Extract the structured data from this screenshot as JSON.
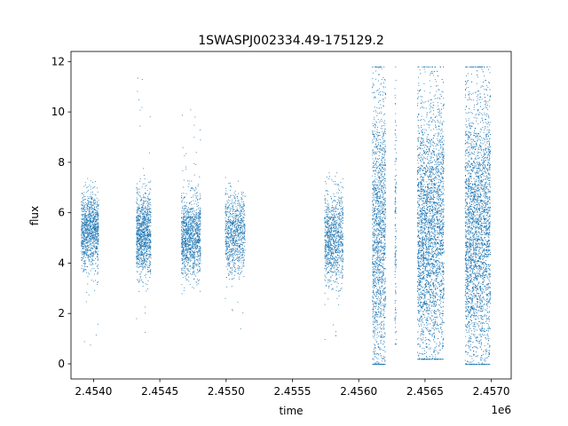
{
  "chart_data": {
    "type": "scatter",
    "title": "1SWASPJ002334.49-175129.2",
    "xlabel": "time",
    "ylabel": "flux",
    "x_offset_label": "1e6",
    "xlim": [
      2453830,
      2457150
    ],
    "ylim": [
      -0.6,
      12.4
    ],
    "x_ticks": [
      2454000,
      2454500,
      2455000,
      2455500,
      2456000,
      2456500,
      2457000
    ],
    "x_tick_labels": [
      "2.4540",
      "2.4545",
      "2.4550",
      "2.4555",
      "2.4560",
      "2.4565",
      "2.4570"
    ],
    "y_ticks": [
      0,
      2,
      4,
      6,
      8,
      10,
      12
    ],
    "y_tick_labels": [
      "0",
      "2",
      "4",
      "6",
      "8",
      "10",
      "12"
    ],
    "grid": false,
    "marker_color": "#1f77b4",
    "series": [
      {
        "season_clusters": [
          {
            "x_range": [
              2453905,
              2454035
            ],
            "core_y": [
              4.0,
              7.0
            ],
            "mean": 5.3,
            "outlier_y_range": [
              0.3,
              10.0
            ],
            "density": 1100
          },
          {
            "x_range": [
              2454320,
              2454430
            ],
            "core_y": [
              3.6,
              6.9
            ],
            "mean": 5.1,
            "outlier_y_range": [
              0.8,
              11.6
            ],
            "density": 1100
          },
          {
            "x_range": [
              2454660,
              2454805
            ],
            "core_y": [
              3.7,
              6.9
            ],
            "mean": 5.1,
            "outlier_y_range": [
              2.8,
              10.3
            ],
            "density": 1200
          },
          {
            "x_range": [
              2454990,
              2455140
            ],
            "core_y": [
              3.9,
              7.0
            ],
            "mean": 5.2,
            "outlier_y_range": [
              1.3,
              7.5
            ],
            "density": 900
          },
          {
            "x_range": [
              2455740,
              2455880
            ],
            "core_y": [
              3.6,
              7.2
            ],
            "mean": 5.0,
            "outlier_y_range": [
              0.3,
              7.6
            ],
            "density": 1000
          },
          {
            "x_range": [
              2456100,
              2456200
            ],
            "core_y": [
              0.1,
              11.8
            ],
            "mean": 5.2,
            "outlier_y_range": [
              0.0,
              11.8
            ],
            "density": 1600
          },
          {
            "x_range": [
              2456270,
              2456280
            ],
            "core_y": [
              1.0,
              11.8
            ],
            "mean": 5.4,
            "outlier_y_range": [
              0.8,
              11.8
            ],
            "density": 150
          },
          {
            "x_range": [
              2456440,
              2456640
            ],
            "core_y": [
              1.0,
              11.6
            ],
            "mean": 5.3,
            "outlier_y_range": [
              0.2,
              11.8
            ],
            "density": 3500
          },
          {
            "x_range": [
              2456800,
              2456990
            ],
            "core_y": [
              0.5,
              11.8
            ],
            "mean": 5.3,
            "outlier_y_range": [
              0.0,
              11.8
            ],
            "density": 3500
          }
        ]
      }
    ]
  }
}
